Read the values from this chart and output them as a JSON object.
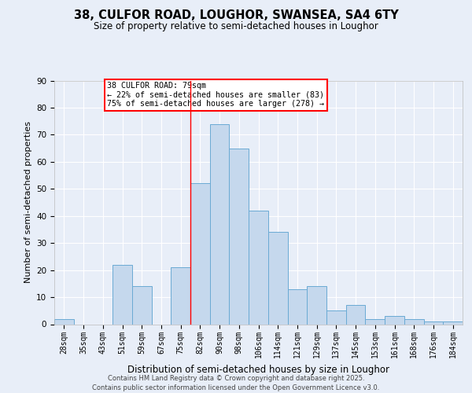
{
  "title": "38, CULFOR ROAD, LOUGHOR, SWANSEA, SA4 6TY",
  "subtitle": "Size of property relative to semi-detached houses in Loughor",
  "xlabel": "Distribution of semi-detached houses by size in Loughor",
  "ylabel": "Number of semi-detached properties",
  "categories": [
    "28sqm",
    "35sqm",
    "43sqm",
    "51sqm",
    "59sqm",
    "67sqm",
    "75sqm",
    "82sqm",
    "90sqm",
    "98sqm",
    "106sqm",
    "114sqm",
    "121sqm",
    "129sqm",
    "137sqm",
    "145sqm",
    "153sqm",
    "161sqm",
    "168sqm",
    "176sqm",
    "184sqm"
  ],
  "values": [
    2,
    0,
    0,
    22,
    14,
    0,
    21,
    52,
    74,
    65,
    42,
    34,
    13,
    14,
    5,
    7,
    2,
    3,
    2,
    1,
    1
  ],
  "bar_color": "#c5d8ed",
  "bar_edge_color": "#6aaad4",
  "vline_x_index": 6.5,
  "property_label": "38 CULFOR ROAD: 79sqm",
  "annotation_line1": "← 22% of semi-detached houses are smaller (83)",
  "annotation_line2": "75% of semi-detached houses are larger (278) →",
  "ylim": [
    0,
    90
  ],
  "yticks": [
    0,
    10,
    20,
    30,
    40,
    50,
    60,
    70,
    80,
    90
  ],
  "background_color": "#e8eef8",
  "grid_color": "#ffffff",
  "footer_line1": "Contains HM Land Registry data © Crown copyright and database right 2025.",
  "footer_line2": "Contains public sector information licensed under the Open Government Licence v3.0."
}
